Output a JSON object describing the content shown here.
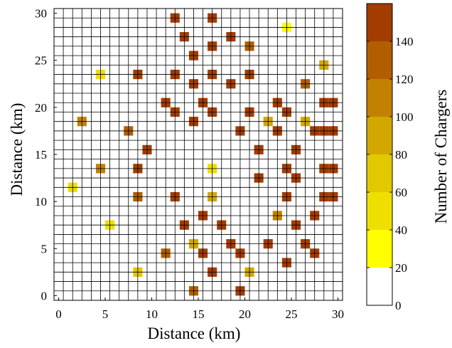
{
  "chart_data": {
    "type": "heatmap",
    "title": "",
    "xlabel": "Distance (km)",
    "ylabel": "Distance (km)",
    "colorbar_label": "Number of Chargers",
    "xlim": [
      -0.5,
      30.5
    ],
    "ylim": [
      -0.5,
      30.5
    ],
    "xticks": [
      0,
      5,
      10,
      15,
      20,
      25,
      30
    ],
    "yticks": [
      0,
      5,
      10,
      15,
      20,
      25,
      30
    ],
    "cell_size_km": 1,
    "grid": true,
    "colorbar": {
      "position": "right",
      "range": [
        0,
        160
      ],
      "ticks": [
        0,
        20,
        40,
        60,
        80,
        100,
        120,
        140
      ],
      "levels": [
        {
          "from": 0,
          "to": 20,
          "color": "#ffffff"
        },
        {
          "from": 20,
          "to": 40,
          "color": "#ffff00"
        },
        {
          "from": 40,
          "to": 60,
          "color": "#efdf00"
        },
        {
          "from": 60,
          "to": 80,
          "color": "#e2c800"
        },
        {
          "from": 80,
          "to": 100,
          "color": "#d2a700"
        },
        {
          "from": 100,
          "to": 120,
          "color": "#c28100"
        },
        {
          "from": 120,
          "to": 140,
          "color": "#b15d00"
        },
        {
          "from": 140,
          "to": 160,
          "color": "#a23c00"
        }
      ]
    },
    "cells": [
      {
        "x": 12.5,
        "y": 29.5,
        "v": 150
      },
      {
        "x": 16.5,
        "y": 29.5,
        "v": 150
      },
      {
        "x": 24.5,
        "y": 28.5,
        "v": 30
      },
      {
        "x": 13.5,
        "y": 27.5,
        "v": 150
      },
      {
        "x": 18.5,
        "y": 27.5,
        "v": 150
      },
      {
        "x": 16.5,
        "y": 26.5,
        "v": 150
      },
      {
        "x": 20.5,
        "y": 26.5,
        "v": 120
      },
      {
        "x": 14.5,
        "y": 25.5,
        "v": 150
      },
      {
        "x": 28.5,
        "y": 24.5,
        "v": 90
      },
      {
        "x": 4.5,
        "y": 23.5,
        "v": 50
      },
      {
        "x": 8.5,
        "y": 23.5,
        "v": 150
      },
      {
        "x": 12.5,
        "y": 23.5,
        "v": 150
      },
      {
        "x": 16.5,
        "y": 23.5,
        "v": 150
      },
      {
        "x": 20.5,
        "y": 23.5,
        "v": 150
      },
      {
        "x": 14.5,
        "y": 22.5,
        "v": 150
      },
      {
        "x": 18.5,
        "y": 22.5,
        "v": 150
      },
      {
        "x": 26.5,
        "y": 22.5,
        "v": 130
      },
      {
        "x": 11.5,
        "y": 20.5,
        "v": 150
      },
      {
        "x": 15.5,
        "y": 20.5,
        "v": 150
      },
      {
        "x": 23.5,
        "y": 20.5,
        "v": 150
      },
      {
        "x": 28.5,
        "y": 20.5,
        "v": 150
      },
      {
        "x": 29.5,
        "y": 20.5,
        "v": 150
      },
      {
        "x": 12.5,
        "y": 19.5,
        "v": 150
      },
      {
        "x": 16.5,
        "y": 19.5,
        "v": 150
      },
      {
        "x": 20.5,
        "y": 19.5,
        "v": 150
      },
      {
        "x": 24.5,
        "y": 19.5,
        "v": 150
      },
      {
        "x": 2.5,
        "y": 18.5,
        "v": 110
      },
      {
        "x": 14.5,
        "y": 18.5,
        "v": 150
      },
      {
        "x": 22.5,
        "y": 18.5,
        "v": 90
      },
      {
        "x": 26.5,
        "y": 18.5,
        "v": 90
      },
      {
        "x": 7.5,
        "y": 17.5,
        "v": 130
      },
      {
        "x": 19.5,
        "y": 17.5,
        "v": 150
      },
      {
        "x": 23.5,
        "y": 17.5,
        "v": 150
      },
      {
        "x": 27.5,
        "y": 17.5,
        "v": 150
      },
      {
        "x": 28.5,
        "y": 17.5,
        "v": 150
      },
      {
        "x": 29.5,
        "y": 17.5,
        "v": 150
      },
      {
        "x": 9.5,
        "y": 15.5,
        "v": 150
      },
      {
        "x": 21.5,
        "y": 15.5,
        "v": 150
      },
      {
        "x": 25.5,
        "y": 15.5,
        "v": 150
      },
      {
        "x": 4.5,
        "y": 13.5,
        "v": 110
      },
      {
        "x": 8.5,
        "y": 13.5,
        "v": 150
      },
      {
        "x": 16.5,
        "y": 13.5,
        "v": 50
      },
      {
        "x": 24.5,
        "y": 13.5,
        "v": 150
      },
      {
        "x": 28.5,
        "y": 13.5,
        "v": 150
      },
      {
        "x": 29.5,
        "y": 13.5,
        "v": 150
      },
      {
        "x": 21.5,
        "y": 12.5,
        "v": 150
      },
      {
        "x": 25.5,
        "y": 12.5,
        "v": 150
      },
      {
        "x": 1.5,
        "y": 11.5,
        "v": 50
      },
      {
        "x": 8.5,
        "y": 10.5,
        "v": 130
      },
      {
        "x": 12.5,
        "y": 10.5,
        "v": 150
      },
      {
        "x": 16.5,
        "y": 10.5,
        "v": 90
      },
      {
        "x": 24.5,
        "y": 10.5,
        "v": 150
      },
      {
        "x": 28.5,
        "y": 10.5,
        "v": 150
      },
      {
        "x": 29.5,
        "y": 10.5,
        "v": 150
      },
      {
        "x": 15.5,
        "y": 8.5,
        "v": 150
      },
      {
        "x": 23.5,
        "y": 8.5,
        "v": 110
      },
      {
        "x": 27.5,
        "y": 8.5,
        "v": 150
      },
      {
        "x": 5.5,
        "y": 7.5,
        "v": 50
      },
      {
        "x": 13.5,
        "y": 7.5,
        "v": 150
      },
      {
        "x": 17.5,
        "y": 7.5,
        "v": 150
      },
      {
        "x": 25.5,
        "y": 7.5,
        "v": 150
      },
      {
        "x": 14.5,
        "y": 5.5,
        "v": 90
      },
      {
        "x": 18.5,
        "y": 5.5,
        "v": 150
      },
      {
        "x": 22.5,
        "y": 5.5,
        "v": 150
      },
      {
        "x": 26.5,
        "y": 5.5,
        "v": 150
      },
      {
        "x": 11.5,
        "y": 4.5,
        "v": 130
      },
      {
        "x": 15.5,
        "y": 4.5,
        "v": 150
      },
      {
        "x": 19.5,
        "y": 4.5,
        "v": 150
      },
      {
        "x": 27.5,
        "y": 4.5,
        "v": 150
      },
      {
        "x": 24.5,
        "y": 3.5,
        "v": 150
      },
      {
        "x": 8.5,
        "y": 2.5,
        "v": 70
      },
      {
        "x": 16.5,
        "y": 2.5,
        "v": 150
      },
      {
        "x": 20.5,
        "y": 2.5,
        "v": 90
      },
      {
        "x": 14.5,
        "y": 0.5,
        "v": 130
      },
      {
        "x": 19.5,
        "y": 0.5,
        "v": 150
      }
    ]
  }
}
